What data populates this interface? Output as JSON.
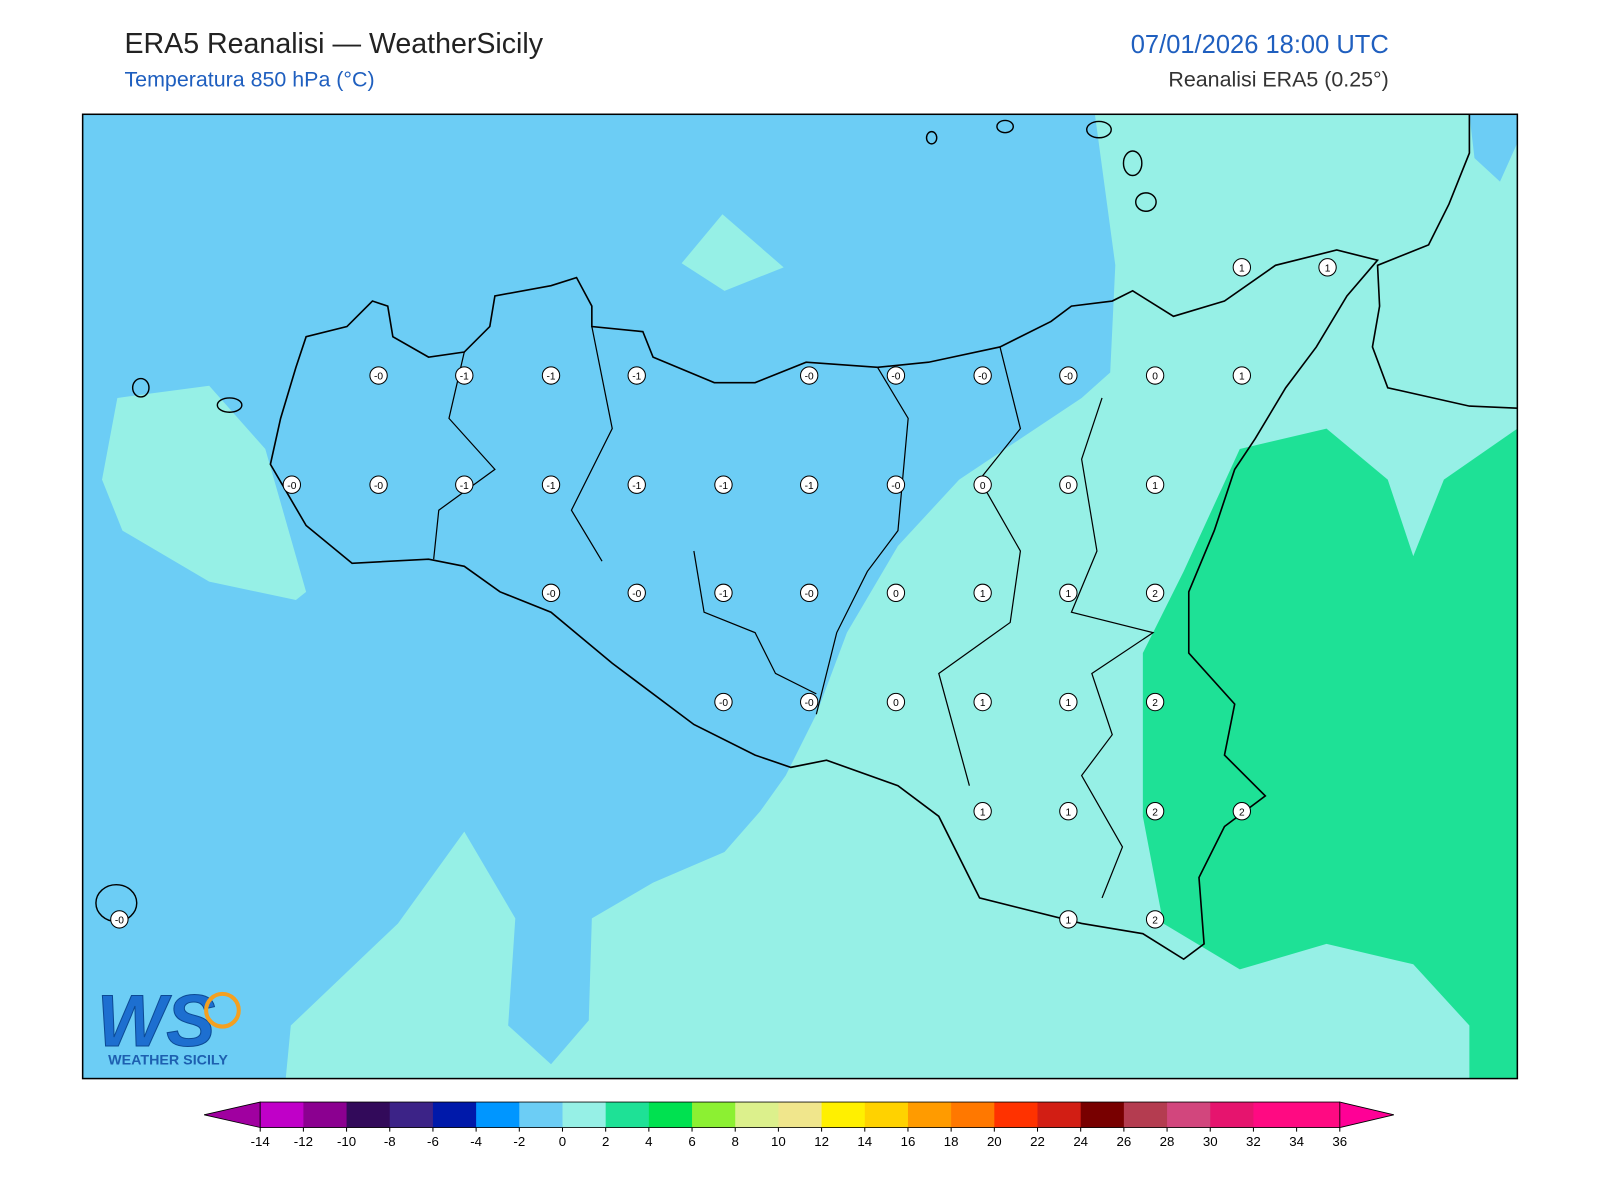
{
  "header": {
    "title": "ERA5 Reanalisi — WeatherSicily",
    "subtitle": "Temperatura 850 hPa (°C)",
    "datetime": "07/01/2026 18:00 UTC",
    "source": "Reanalisi ERA5 (0.25°)"
  },
  "map": {
    "stations": [
      "1",
      "1",
      "-0",
      "-1",
      "-1",
      "-1",
      "-0",
      "-0",
      "-0",
      "-0",
      "0",
      "1",
      "-0",
      "-0",
      "-1",
      "-1",
      "-1",
      "-1",
      "-1",
      "-0",
      "0",
      "0",
      "1",
      "-0",
      "-0",
      "-1",
      "-0",
      "0",
      "1",
      "1",
      "2",
      "-0",
      "-0",
      "0",
      "1",
      "1",
      "2",
      "1",
      "1",
      "2",
      "2",
      "-0",
      "1",
      "2"
    ]
  },
  "logo": {
    "initials": "WS",
    "text": "WEATHER SICILY"
  },
  "colorbar": {
    "ticks": [
      -14,
      -12,
      -10,
      -8,
      -6,
      -4,
      -2,
      0,
      2,
      4,
      6,
      8,
      10,
      12,
      14,
      16,
      18,
      20,
      22,
      24,
      26,
      28,
      30,
      32,
      34,
      36
    ],
    "colors": [
      "#c000c8",
      "#8b0090",
      "#320a5a",
      "#3c2387",
      "#0019aa",
      "#0096ff",
      "#6ccdf5",
      "#96f0e6",
      "#1ee196",
      "#00e150",
      "#8cf032",
      "#dcf08c",
      "#f0e68c",
      "#fff000",
      "#ffd200",
      "#ff9b00",
      "#ff7800",
      "#ff3200",
      "#d21e14",
      "#780000",
      "#b43c50",
      "#d2467d",
      "#e6146e",
      "#ff0a82",
      "#ff0a82"
    ],
    "under_color": "#a000a0",
    "over_color": "#ff0096"
  }
}
